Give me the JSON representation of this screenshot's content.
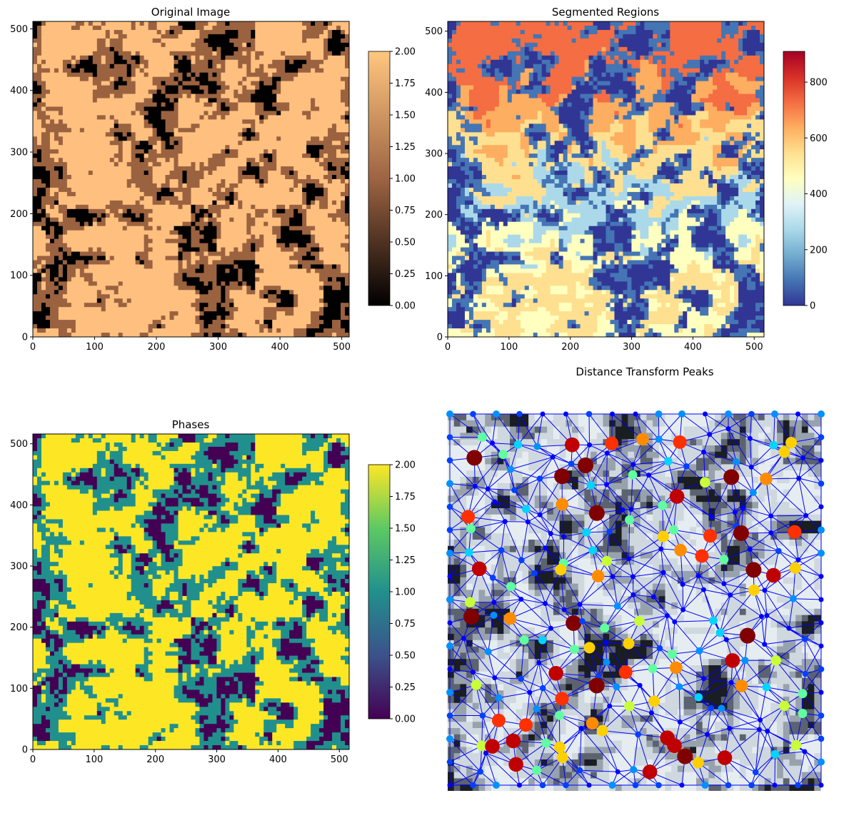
{
  "chart_data": [
    {
      "type": "heatmap",
      "title": "Original Image",
      "xlim": [
        0,
        512
      ],
      "ylim": [
        0,
        512
      ],
      "xticks": [
        0,
        100,
        200,
        300,
        400,
        500
      ],
      "yticks": [
        0,
        100,
        200,
        300,
        400,
        500
      ],
      "colorbar": {
        "colormap": "copper",
        "range": [
          0,
          2
        ],
        "ticks": [
          "0.00",
          "0.25",
          "0.50",
          "0.75",
          "1.00",
          "1.25",
          "1.50",
          "1.75",
          "2.00"
        ]
      },
      "palette": [
        "#000000",
        "#9b6240",
        "#ffc07f"
      ]
    },
    {
      "type": "heatmap",
      "title": "Segmented Regions",
      "xlim": [
        0,
        516
      ],
      "ylim": [
        0,
        516
      ],
      "xticks": [
        0,
        100,
        200,
        300,
        400,
        500
      ],
      "yticks": [
        0,
        100,
        200,
        300,
        400,
        500
      ],
      "colorbar": {
        "colormap": "RdYlBu_r",
        "range": [
          0,
          910
        ],
        "ticks": [
          "0",
          "200",
          "400",
          "600",
          "800"
        ]
      },
      "palette": [
        "#313695",
        "#4575b4",
        "#74add1",
        "#abd9e9",
        "#e0f3f8",
        "#ffffbf",
        "#fee090",
        "#fdae61",
        "#f46d43",
        "#d73027",
        "#a50026"
      ]
    },
    {
      "type": "heatmap",
      "title": "Phases",
      "xlim": [
        0,
        516
      ],
      "ylim": [
        0,
        516
      ],
      "xticks": [
        0,
        100,
        200,
        300,
        400,
        500
      ],
      "yticks": [
        0,
        100,
        200,
        300,
        400,
        500
      ],
      "colorbar": {
        "colormap": "viridis",
        "range": [
          0,
          2
        ],
        "ticks": [
          "0.00",
          "0.25",
          "0.50",
          "0.75",
          "1.00",
          "1.25",
          "1.50",
          "1.75",
          "2.00"
        ]
      },
      "palette": [
        "#440154",
        "#21908d",
        "#fde725"
      ]
    },
    {
      "type": "scatter",
      "title": "Distance Transform Peaks",
      "grid": false,
      "node_colormap": "jet",
      "edge_color": "#0000ff",
      "background_colormap": "bone"
    }
  ]
}
